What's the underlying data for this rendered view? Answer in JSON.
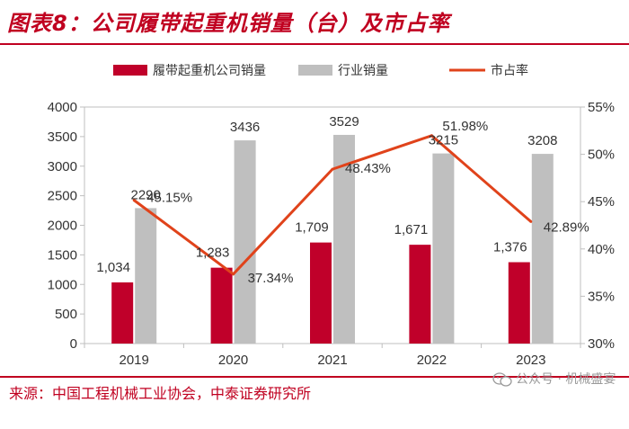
{
  "title": "图表8：公司履带起重机销量（台）及市占率",
  "source": "来源：中国工程机械工业协会，中泰证券研究所",
  "watermark": "公众号 · 机械盛宴",
  "colors": {
    "company": "#c0002a",
    "industry": "#bfbfbf",
    "share": "#e0431b",
    "title": "#c00020"
  },
  "chart_data": {
    "type": "bar",
    "categories": [
      "2019",
      "2020",
      "2021",
      "2022",
      "2023"
    ],
    "series": [
      {
        "name": "履带起重机公司销量",
        "type": "bar",
        "axis": "left",
        "values": [
          1034,
          1283,
          1709,
          1671,
          1376
        ],
        "labels": [
          "1,034",
          "1,283",
          "1,709",
          "1,671",
          "1,376"
        ]
      },
      {
        "name": "行业销量",
        "type": "bar",
        "axis": "left",
        "values": [
          2290,
          3436,
          3529,
          3215,
          3208
        ],
        "labels": [
          "2290",
          "3436",
          "3529",
          "3215",
          "3208"
        ]
      },
      {
        "name": "市占率",
        "type": "line",
        "axis": "right",
        "values": [
          45.15,
          37.34,
          48.43,
          51.98,
          42.89
        ],
        "labels": [
          "45.15%",
          "37.34%",
          "48.43%",
          "51.98%",
          "42.89%"
        ]
      }
    ],
    "y_left": {
      "min": 0,
      "max": 4000,
      "ticks": [
        "0",
        "500",
        "1000",
        "1500",
        "2000",
        "2500",
        "3000",
        "3500",
        "4000"
      ]
    },
    "y_right": {
      "min": 30,
      "max": 55,
      "ticks": [
        "30%",
        "35%",
        "40%",
        "45%",
        "50%",
        "55%"
      ]
    },
    "legend_position": "top",
    "grid": false
  }
}
